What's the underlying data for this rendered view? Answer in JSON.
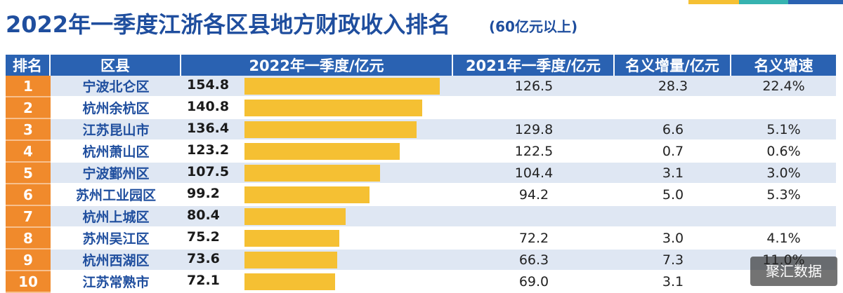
{
  "header": {
    "title": "2022年一季度江浙各区县地方财政收入排名",
    "subtitle": "(60亿元以上)"
  },
  "accents": {
    "orange": "#f08a2c",
    "blue": "#2a62b2",
    "bar": "#f5c033",
    "band": "#dfe7f3"
  },
  "watermark": "聚汇数据",
  "chart_data": {
    "type": "table",
    "title": "2022年一季度江浙各区县地方财政收入排名",
    "subtitle": "(60亿元以上)",
    "columns": [
      "排名",
      "区县",
      "2022年一季度/亿元",
      "2021年一季度/亿元",
      "名义增量/亿元",
      "名义增速"
    ],
    "bar_column": "2022年一季度/亿元",
    "bar_max": 154.8,
    "rows": [
      {
        "rank": "1",
        "district": "宁波北仑区",
        "v2022": "154.8",
        "v2021": "126.5",
        "increase": "28.3",
        "growth": "22.4%"
      },
      {
        "rank": "2",
        "district": "杭州余杭区",
        "v2022": "140.8",
        "v2021": "",
        "increase": "",
        "growth": ""
      },
      {
        "rank": "3",
        "district": "江苏昆山市",
        "v2022": "136.4",
        "v2021": "129.8",
        "increase": "6.6",
        "growth": "5.1%"
      },
      {
        "rank": "4",
        "district": "杭州萧山区",
        "v2022": "123.2",
        "v2021": "122.5",
        "increase": "0.7",
        "growth": "0.6%"
      },
      {
        "rank": "5",
        "district": "宁波鄞州区",
        "v2022": "107.5",
        "v2021": "104.4",
        "increase": "3.1",
        "growth": "3.0%"
      },
      {
        "rank": "6",
        "district": "苏州工业园区",
        "v2022": "99.2",
        "v2021": "94.2",
        "increase": "5.0",
        "growth": "5.3%"
      },
      {
        "rank": "7",
        "district": "杭州上城区",
        "v2022": "80.4",
        "v2021": "",
        "increase": "",
        "growth": ""
      },
      {
        "rank": "8",
        "district": "苏州吴江区",
        "v2022": "75.2",
        "v2021": "72.2",
        "increase": "3.0",
        "growth": "4.1%"
      },
      {
        "rank": "9",
        "district": "杭州西湖区",
        "v2022": "73.6",
        "v2021": "66.3",
        "increase": "7.3",
        "growth": "11.0%"
      },
      {
        "rank": "10",
        "district": "江苏常熟市",
        "v2022": "72.1",
        "v2021": "69.0",
        "increase": "3.1",
        "growth": ""
      }
    ]
  }
}
